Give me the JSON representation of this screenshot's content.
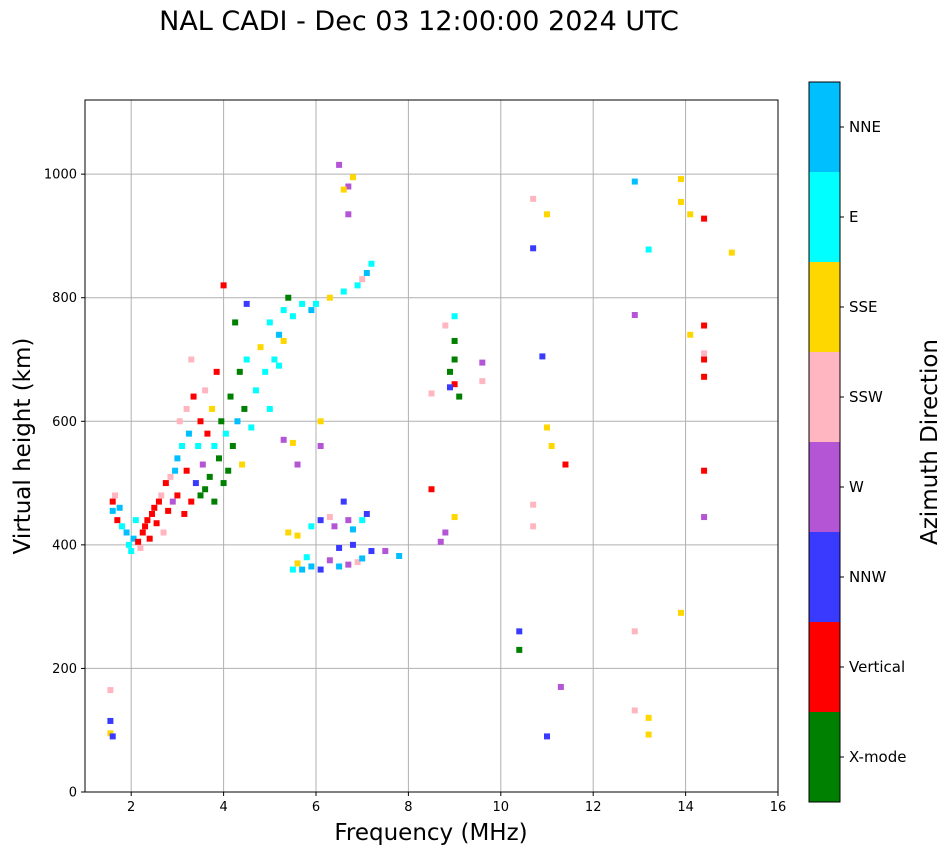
{
  "chart_data": {
    "type": "scatter",
    "title": "NAL CADI - Dec 03 12:00:00 2024 UTC",
    "xlabel": "Frequency (MHz)",
    "ylabel": "Virtual height (km)",
    "xlim": [
      1,
      16
    ],
    "ylim": [
      0,
      1120
    ],
    "xticks": [
      2,
      4,
      6,
      8,
      10,
      12,
      14,
      16
    ],
    "yticks": [
      0,
      200,
      400,
      600,
      800,
      1000
    ],
    "grid": true,
    "colorbar": {
      "title": "Azimuth Direction",
      "categories": [
        {
          "name": "X-mode",
          "color": "#008000"
        },
        {
          "name": "Vertical",
          "color": "#ff0000"
        },
        {
          "name": "NNW",
          "color": "#3a3aff"
        },
        {
          "name": "W",
          "color": "#b455d6"
        },
        {
          "name": "SSW",
          "color": "#ffb6c1"
        },
        {
          "name": "SSE",
          "color": "#ffd700"
        },
        {
          "name": "E",
          "color": "#00ffff"
        },
        {
          "name": "NNE",
          "color": "#00bfff"
        }
      ]
    },
    "points": [
      [
        1.6,
        470,
        "Vertical"
      ],
      [
        1.6,
        455,
        "NNE"
      ],
      [
        1.65,
        480,
        "SSW"
      ],
      [
        1.7,
        440,
        "Vertical"
      ],
      [
        1.75,
        460,
        "NNE"
      ],
      [
        1.8,
        430,
        "E"
      ],
      [
        1.9,
        420,
        "NNE"
      ],
      [
        1.95,
        400,
        "E"
      ],
      [
        2.0,
        390,
        "E"
      ],
      [
        2.05,
        410,
        "NNE"
      ],
      [
        2.1,
        440,
        "E"
      ],
      [
        2.15,
        405,
        "Vertical"
      ],
      [
        2.2,
        395,
        "SSW"
      ],
      [
        2.25,
        420,
        "Vertical"
      ],
      [
        2.3,
        430,
        "Vertical"
      ],
      [
        2.35,
        440,
        "Vertical"
      ],
      [
        2.4,
        410,
        "Vertical"
      ],
      [
        2.45,
        450,
        "Vertical"
      ],
      [
        2.5,
        460,
        "Vertical"
      ],
      [
        2.55,
        435,
        "Vertical"
      ],
      [
        2.6,
        470,
        "Vertical"
      ],
      [
        2.65,
        480,
        "SSW"
      ],
      [
        2.7,
        420,
        "SSW"
      ],
      [
        2.75,
        500,
        "Vertical"
      ],
      [
        2.8,
        455,
        "Vertical"
      ],
      [
        2.85,
        510,
        "SSW"
      ],
      [
        2.9,
        470,
        "W"
      ],
      [
        2.95,
        520,
        "NNE"
      ],
      [
        3.0,
        480,
        "Vertical"
      ],
      [
        3.0,
        540,
        "NNE"
      ],
      [
        3.05,
        600,
        "SSW"
      ],
      [
        3.1,
        560,
        "E"
      ],
      [
        3.15,
        450,
        "Vertical"
      ],
      [
        3.2,
        520,
        "Vertical"
      ],
      [
        3.2,
        620,
        "SSW"
      ],
      [
        3.25,
        580,
        "NNE"
      ],
      [
        3.3,
        470,
        "Vertical"
      ],
      [
        3.3,
        700,
        "SSW"
      ],
      [
        3.35,
        640,
        "Vertical"
      ],
      [
        3.4,
        500,
        "NNW"
      ],
      [
        3.45,
        560,
        "E"
      ],
      [
        3.5,
        480,
        "X-mode"
      ],
      [
        3.5,
        600,
        "Vertical"
      ],
      [
        3.55,
        530,
        "W"
      ],
      [
        3.6,
        650,
        "SSW"
      ],
      [
        3.6,
        490,
        "X-mode"
      ],
      [
        3.65,
        580,
        "Vertical"
      ],
      [
        3.7,
        510,
        "X-mode"
      ],
      [
        3.75,
        620,
        "SSE"
      ],
      [
        3.8,
        470,
        "X-mode"
      ],
      [
        3.8,
        560,
        "E"
      ],
      [
        3.85,
        680,
        "Vertical"
      ],
      [
        3.9,
        540,
        "X-mode"
      ],
      [
        3.95,
        600,
        "X-mode"
      ],
      [
        4.0,
        500,
        "X-mode"
      ],
      [
        4.0,
        820,
        "Vertical"
      ],
      [
        4.05,
        580,
        "E"
      ],
      [
        4.1,
        520,
        "X-mode"
      ],
      [
        4.15,
        640,
        "X-mode"
      ],
      [
        4.2,
        560,
        "X-mode"
      ],
      [
        4.25,
        760,
        "X-mode"
      ],
      [
        4.3,
        600,
        "NNE"
      ],
      [
        4.35,
        680,
        "X-mode"
      ],
      [
        4.4,
        530,
        "SSE"
      ],
      [
        4.45,
        620,
        "X-mode"
      ],
      [
        4.5,
        700,
        "E"
      ],
      [
        4.5,
        790,
        "NNW"
      ],
      [
        4.6,
        590,
        "E"
      ],
      [
        4.7,
        650,
        "E"
      ],
      [
        4.8,
        720,
        "SSE"
      ],
      [
        4.9,
        680,
        "E"
      ],
      [
        5.0,
        760,
        "E"
      ],
      [
        5.1,
        700,
        "E"
      ],
      [
        5.2,
        740,
        "NNE"
      ],
      [
        5.3,
        780,
        "E"
      ],
      [
        5.4,
        800,
        "X-mode"
      ],
      [
        5.5,
        770,
        "E"
      ],
      [
        5.2,
        690,
        "E"
      ],
      [
        5.3,
        730,
        "SSE"
      ],
      [
        5.0,
        620,
        "E"
      ],
      [
        5.7,
        790,
        "E"
      ],
      [
        5.9,
        780,
        "NNE"
      ],
      [
        6.0,
        790,
        "E"
      ],
      [
        6.3,
        800,
        "SSE"
      ],
      [
        6.6,
        810,
        "E"
      ],
      [
        6.9,
        820,
        "E"
      ],
      [
        7.1,
        840,
        "NNE"
      ],
      [
        7.2,
        855,
        "E"
      ],
      [
        7.0,
        830,
        "SSW"
      ],
      [
        5.5,
        360,
        "E"
      ],
      [
        5.6,
        370,
        "SSE"
      ],
      [
        5.7,
        360,
        "NNE"
      ],
      [
        5.8,
        380,
        "E"
      ],
      [
        5.9,
        365,
        "NNE"
      ],
      [
        6.1,
        360,
        "NNW"
      ],
      [
        6.3,
        375,
        "W"
      ],
      [
        6.5,
        365,
        "NNE"
      ],
      [
        6.7,
        368,
        "W"
      ],
      [
        6.9,
        372,
        "SSW"
      ],
      [
        7.0,
        378,
        "NNE"
      ],
      [
        7.2,
        390,
        "NNW"
      ],
      [
        7.5,
        390,
        "W"
      ],
      [
        7.8,
        382,
        "NNE"
      ],
      [
        5.4,
        420,
        "SSE"
      ],
      [
        5.6,
        415,
        "SSE"
      ],
      [
        5.9,
        430,
        "E"
      ],
      [
        6.1,
        440,
        "NNW"
      ],
      [
        6.3,
        445,
        "SSW"
      ],
      [
        6.4,
        430,
        "W"
      ],
      [
        6.6,
        470,
        "NNW"
      ],
      [
        6.7,
        440,
        "W"
      ],
      [
        6.8,
        425,
        "NNE"
      ],
      [
        7.1,
        450,
        "NNW"
      ],
      [
        6.5,
        395,
        "NNW"
      ],
      [
        6.8,
        400,
        "NNW"
      ],
      [
        7.0,
        440,
        "E"
      ],
      [
        5.3,
        570,
        "W"
      ],
      [
        5.5,
        565,
        "SSE"
      ],
      [
        6.1,
        600,
        "SSE"
      ],
      [
        6.1,
        560,
        "W"
      ],
      [
        5.6,
        530,
        "W"
      ],
      [
        6.5,
        1015,
        "W"
      ],
      [
        6.7,
        980,
        "W"
      ],
      [
        6.8,
        995,
        "SSE"
      ],
      [
        6.7,
        935,
        "W"
      ],
      [
        6.6,
        975,
        "SSE"
      ],
      [
        8.5,
        645,
        "SSW"
      ],
      [
        8.8,
        755,
        "SSW"
      ],
      [
        8.9,
        680,
        "X-mode"
      ],
      [
        9.0,
        660,
        "Vertical"
      ],
      [
        9.0,
        700,
        "X-mode"
      ],
      [
        9.0,
        730,
        "X-mode"
      ],
      [
        9.0,
        770,
        "E"
      ],
      [
        9.1,
        640,
        "X-mode"
      ],
      [
        8.5,
        490,
        "Vertical"
      ],
      [
        8.8,
        420,
        "W"
      ],
      [
        8.7,
        405,
        "W"
      ],
      [
        9.0,
        445,
        "SSE"
      ],
      [
        8.9,
        655,
        "NNW"
      ],
      [
        9.6,
        695,
        "W"
      ],
      [
        9.6,
        665,
        "SSW"
      ],
      [
        10.4,
        260,
        "NNW"
      ],
      [
        10.4,
        230,
        "X-mode"
      ],
      [
        10.7,
        960,
        "SSW"
      ],
      [
        10.7,
        880,
        "NNW"
      ],
      [
        10.9,
        705,
        "NNW"
      ],
      [
        11.0,
        935,
        "SSE"
      ],
      [
        11.0,
        590,
        "SSE"
      ],
      [
        11.1,
        560,
        "SSE"
      ],
      [
        11.4,
        530,
        "Vertical"
      ],
      [
        10.7,
        465,
        "SSW"
      ],
      [
        10.7,
        430,
        "SSW"
      ],
      [
        11.0,
        90,
        "NNW"
      ],
      [
        11.3,
        170,
        "W"
      ],
      [
        12.9,
        988,
        "NNE"
      ],
      [
        13.2,
        878,
        "E"
      ],
      [
        12.9,
        772,
        "W"
      ],
      [
        12.9,
        260,
        "SSW"
      ],
      [
        13.2,
        120,
        "SSE"
      ],
      [
        12.9,
        132,
        "SSW"
      ],
      [
        13.2,
        93,
        "SSE"
      ],
      [
        13.9,
        290,
        "SSE"
      ],
      [
        13.9,
        992,
        "SSE"
      ],
      [
        14.1,
        935,
        "SSE"
      ],
      [
        14.4,
        928,
        "Vertical"
      ],
      [
        14.1,
        740,
        "SSE"
      ],
      [
        14.4,
        755,
        "Vertical"
      ],
      [
        14.4,
        700,
        "Vertical"
      ],
      [
        14.4,
        672,
        "Vertical"
      ],
      [
        14.4,
        520,
        "Vertical"
      ],
      [
        14.4,
        445,
        "W"
      ],
      [
        15.0,
        873,
        "SSE"
      ],
      [
        14.4,
        710,
        "SSW"
      ],
      [
        13.9,
        955,
        "SSE"
      ],
      [
        1.55,
        165,
        "SSW"
      ],
      [
        1.55,
        115,
        "NNW"
      ],
      [
        1.55,
        95,
        "SSE"
      ],
      [
        1.6,
        90,
        "NNW"
      ]
    ]
  }
}
